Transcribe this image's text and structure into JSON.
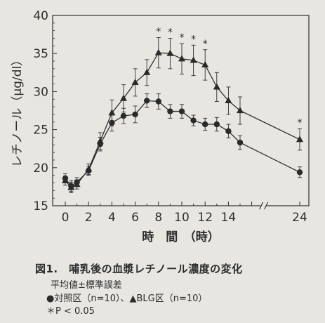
{
  "chart_data": {
    "type": "line",
    "xlabel": "時　間　（時）",
    "ylabel": "レチノール（μg/dl）",
    "xlim": [
      0,
      24
    ],
    "ylim": [
      15,
      40
    ],
    "xticks": [
      0,
      2,
      4,
      6,
      8,
      10,
      12,
      14,
      24
    ],
    "yticks": [
      15,
      20,
      25,
      30,
      35,
      40
    ],
    "axis_break": "x between 16 and 24",
    "significance_marker": "*",
    "series": [
      {
        "name": "対照区（n=10）",
        "marker": "circle",
        "x": [
          0,
          0.5,
          1,
          2,
          3,
          4,
          5,
          6,
          7,
          8,
          9,
          10,
          11,
          12,
          13,
          14,
          15,
          24
        ],
        "y": [
          18.6,
          17.6,
          18.1,
          19.6,
          23.1,
          25.9,
          26.8,
          27.0,
          28.8,
          28.7,
          27.4,
          27.4,
          26.2,
          25.7,
          25.7,
          24.8,
          23.3,
          19.4
        ],
        "err": [
          0.6,
          0.7,
          0.6,
          0.6,
          0.9,
          1.1,
          1.0,
          1.1,
          0.9,
          1.0,
          0.9,
          0.9,
          0.7,
          0.8,
          0.9,
          0.9,
          0.9,
          0.7
        ]
      },
      {
        "name": "BLG区（n=10）",
        "marker": "triangle",
        "x": [
          0,
          0.5,
          1,
          2,
          3,
          4,
          5,
          6,
          7,
          8,
          9,
          10,
          11,
          12,
          13,
          14,
          15,
          24
        ],
        "y": [
          18.3,
          17.4,
          17.8,
          19.8,
          23.5,
          27.2,
          29.1,
          31.2,
          32.5,
          35.1,
          35.0,
          34.3,
          34.1,
          33.5,
          30.6,
          28.8,
          27.5,
          23.7
        ],
        "err": [
          0.6,
          0.7,
          0.6,
          0.7,
          1.1,
          1.7,
          1.8,
          1.8,
          1.7,
          2.0,
          2.0,
          2.0,
          2.0,
          2.0,
          1.9,
          1.8,
          1.8,
          1.4
        ],
        "significant_at": [
          8,
          9,
          10,
          11,
          12,
          24
        ]
      }
    ]
  },
  "caption": {
    "title": "図1.　哺乳後の血漿レチノール濃度の変化",
    "note": "平均値±標準誤差",
    "legend": "●対照区（n=10）、▲BLG区（n=10）",
    "significance": "＊P < 0.05"
  }
}
